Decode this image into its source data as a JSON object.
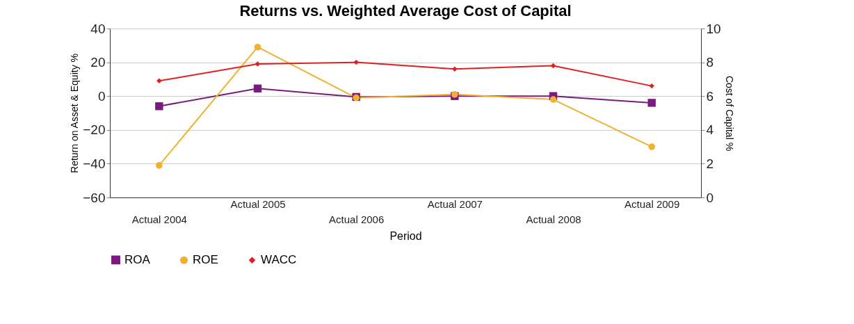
{
  "chart_data": {
    "type": "line",
    "title": "Returns vs. Weighted Average Cost of Capital",
    "xlabel": "Period",
    "ylabel": "Return on Asset & Equity %",
    "y2label": "Cost of Capital %",
    "categories": [
      "Actual 2004",
      "Actual 2005",
      "Actual 2006",
      "Actual 2007",
      "Actual 2008",
      "Actual 2009"
    ],
    "series": [
      {
        "name": "ROA",
        "color": "#7b1a7e",
        "marker": "square",
        "values": [
          -6,
          4.5,
          -0.5,
          0,
          0,
          -4
        ]
      },
      {
        "name": "ROE",
        "color": "#f0b030",
        "marker": "circle",
        "values": [
          -41,
          29,
          -1,
          1,
          -2,
          -30
        ]
      },
      {
        "name": "WACC",
        "color": "#e02020",
        "marker": "diamond",
        "axis": "y2",
        "values": [
          6.9,
          7.9,
          8.0,
          7.6,
          7.8,
          6.6
        ]
      }
    ],
    "ylim": [
      -60,
      40
    ],
    "yticks": [
      -60,
      -40,
      -20,
      0,
      20,
      40
    ],
    "y2lim": [
      0,
      10
    ],
    "y2ticks": [
      0,
      2,
      4,
      6,
      8,
      10
    ],
    "grid": "y",
    "legend": "bottom",
    "line_style": "solid"
  }
}
